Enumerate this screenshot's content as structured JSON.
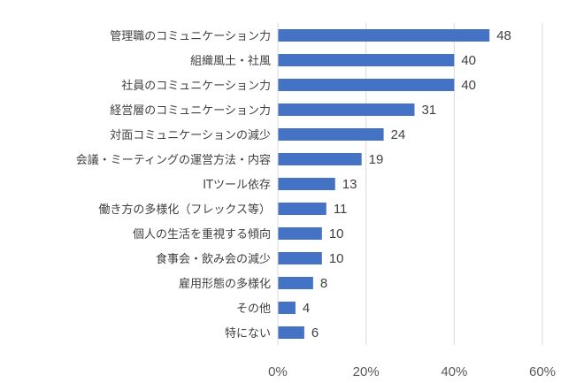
{
  "chart_data": {
    "type": "bar",
    "orientation": "horizontal",
    "categories": [
      "管理職のコミュニケーション力",
      "組織風土・社風",
      "社員のコミュニケーション力",
      "経営層のコミュニケーション力",
      "対面コミュニケーションの減少",
      "会議・ミーティングの運営方法・内容",
      "ITツール依存",
      "働き方の多様化（フレックス等）",
      "個人の生活を重視する傾向",
      "食事会・飲み会の減少",
      "雇用形態の多様化",
      "その他",
      "特にない"
    ],
    "values": [
      48,
      40,
      40,
      31,
      24,
      19,
      13,
      11,
      10,
      10,
      8,
      4,
      6
    ],
    "xlim": [
      0,
      60
    ],
    "xticks": [
      0,
      20,
      40,
      60
    ],
    "xtick_labels": [
      "0%",
      "20%",
      "40%",
      "60%"
    ],
    "title": "",
    "xlabel": "",
    "ylabel": "",
    "grid": "vertical",
    "legend": "none",
    "bar_color": "#4472C4",
    "grid_color": "#D9D9D9"
  }
}
